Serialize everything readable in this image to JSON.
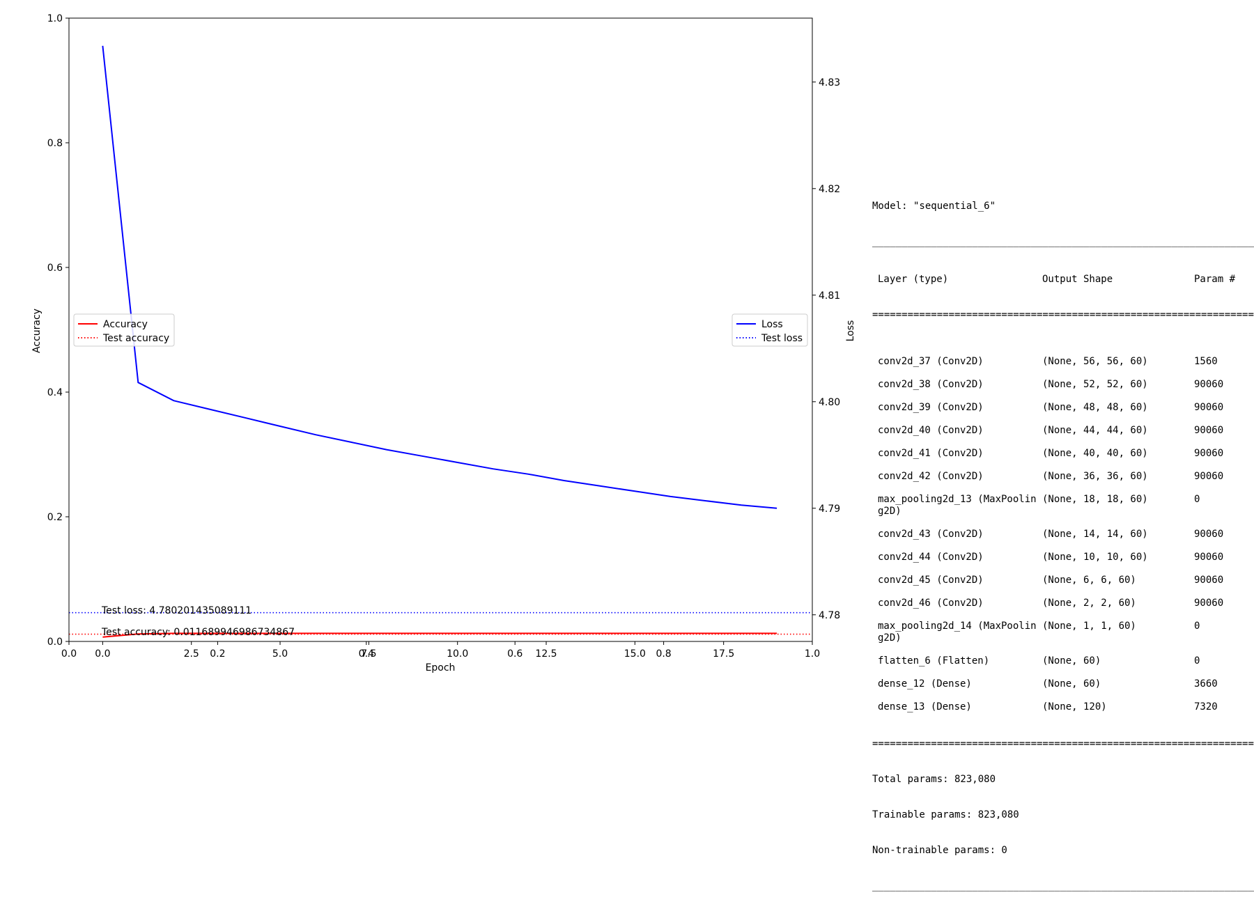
{
  "chart_data": {
    "type": "line",
    "xlabel": "Epoch",
    "ylabel_left": "Accuracy",
    "ylabel_right": "Loss",
    "ylim_left": [
      0.0,
      1.0
    ],
    "ylim_right": [
      4.7775,
      4.836
    ],
    "xlim": [
      -0.95,
      20.0
    ],
    "x": [
      0,
      1,
      2,
      3,
      4,
      5,
      6,
      7,
      8,
      9,
      10,
      11,
      12,
      13,
      14,
      15,
      16,
      17,
      18,
      19
    ],
    "x_ticks": [
      "0.0",
      "2.5",
      "5.0",
      "7.5",
      "10.0",
      "12.5",
      "15.0",
      "17.5"
    ],
    "x_tick_values": [
      0.0,
      2.5,
      5.0,
      7.5,
      10.0,
      12.5,
      15.0,
      17.5
    ],
    "overlay_x_ticks": [
      "0.0",
      "0.2",
      "0.4",
      "0.6",
      "0.8",
      "1.0"
    ],
    "overlay_x_tick_values": [
      0.0,
      0.2,
      0.4,
      0.6,
      0.8,
      1.0
    ],
    "y_ticks_left": [
      "0.0",
      "0.2",
      "0.4",
      "0.6",
      "0.8",
      "1.0"
    ],
    "y_tick_values_left": [
      0.0,
      0.2,
      0.4,
      0.6,
      0.8,
      1.0
    ],
    "y_ticks_right": [
      "4.78",
      "4.79",
      "4.80",
      "4.81",
      "4.82",
      "4.83"
    ],
    "y_tick_values_right": [
      4.78,
      4.79,
      4.8,
      4.81,
      4.82,
      4.83
    ],
    "series": [
      {
        "name": "Accuracy",
        "axis": "left",
        "color": "#ff0000",
        "style": "solid",
        "values": [
          0.007,
          0.012,
          0.013,
          0.013,
          0.013,
          0.013,
          0.013,
          0.013,
          0.013,
          0.013,
          0.013,
          0.013,
          0.013,
          0.013,
          0.013,
          0.013,
          0.013,
          0.013,
          0.013,
          0.013
        ]
      },
      {
        "name": "Loss",
        "axis": "right",
        "color": "#0000ff",
        "style": "solid",
        "values": [
          4.8334,
          4.8018,
          4.8001,
          4.7993,
          4.7985,
          4.7977,
          4.7969,
          4.7962,
          4.7955,
          4.7949,
          4.7943,
          4.7937,
          4.7932,
          4.7926,
          4.7921,
          4.7916,
          4.7911,
          4.7907,
          4.7903,
          4.79
        ]
      }
    ],
    "hlines": [
      {
        "name": "Test accuracy",
        "axis": "left",
        "value": 0.011689946986734867,
        "color": "#ff0000",
        "style": "dotted"
      },
      {
        "name": "Test loss",
        "axis": "right",
        "value": 4.780201435089111,
        "color": "#0000ff",
        "style": "dotted"
      }
    ],
    "legend_left": {
      "placement": "center-left",
      "entries": [
        "Accuracy",
        "Test accuracy"
      ]
    },
    "legend_right": {
      "placement": "center-right",
      "entries": [
        "Loss",
        "Test loss"
      ]
    },
    "annotations": {
      "test_loss": "Test loss: 4.780201435089111",
      "test_accuracy": "Test accuracy: 0.011689946986734867"
    }
  },
  "summary": {
    "title": "Model: \"sequential_6\"",
    "columns": [
      "Layer (type)",
      "Output Shape",
      "Param #"
    ],
    "layers": [
      {
        "name": "conv2d_37 (Conv2D)",
        "shape": "(None, 56, 56, 60)",
        "params": "1560"
      },
      {
        "name": "conv2d_38 (Conv2D)",
        "shape": "(None, 52, 52, 60)",
        "params": "90060"
      },
      {
        "name": "conv2d_39 (Conv2D)",
        "shape": "(None, 48, 48, 60)",
        "params": "90060"
      },
      {
        "name": "conv2d_40 (Conv2D)",
        "shape": "(None, 44, 44, 60)",
        "params": "90060"
      },
      {
        "name": "conv2d_41 (Conv2D)",
        "shape": "(None, 40, 40, 60)",
        "params": "90060"
      },
      {
        "name": "conv2d_42 (Conv2D)",
        "shape": "(None, 36, 36, 60)",
        "params": "90060"
      },
      {
        "name": "max_pooling2d_13 (MaxPoolin\ng2D)",
        "shape": "(None, 18, 18, 60)",
        "params": "0"
      },
      {
        "name": "conv2d_43 (Conv2D)",
        "shape": "(None, 14, 14, 60)",
        "params": "90060"
      },
      {
        "name": "conv2d_44 (Conv2D)",
        "shape": "(None, 10, 10, 60)",
        "params": "90060"
      },
      {
        "name": "conv2d_45 (Conv2D)",
        "shape": "(None, 6, 6, 60)",
        "params": "90060"
      },
      {
        "name": "conv2d_46 (Conv2D)",
        "shape": "(None, 2, 2, 60)",
        "params": "90060"
      },
      {
        "name": "max_pooling2d_14 (MaxPoolin\ng2D)",
        "shape": "(None, 1, 1, 60)",
        "params": "0"
      },
      {
        "name": "flatten_6 (Flatten)",
        "shape": "(None, 60)",
        "params": "0"
      },
      {
        "name": "dense_12 (Dense)",
        "shape": "(None, 60)",
        "params": "3660"
      },
      {
        "name": "dense_13 (Dense)",
        "shape": "(None, 120)",
        "params": "7320"
      }
    ],
    "total_params": "Total params: 823,080",
    "trainable_params": "Trainable params: 823,080",
    "non_trainable_params": "Non-trainable params: 0"
  }
}
